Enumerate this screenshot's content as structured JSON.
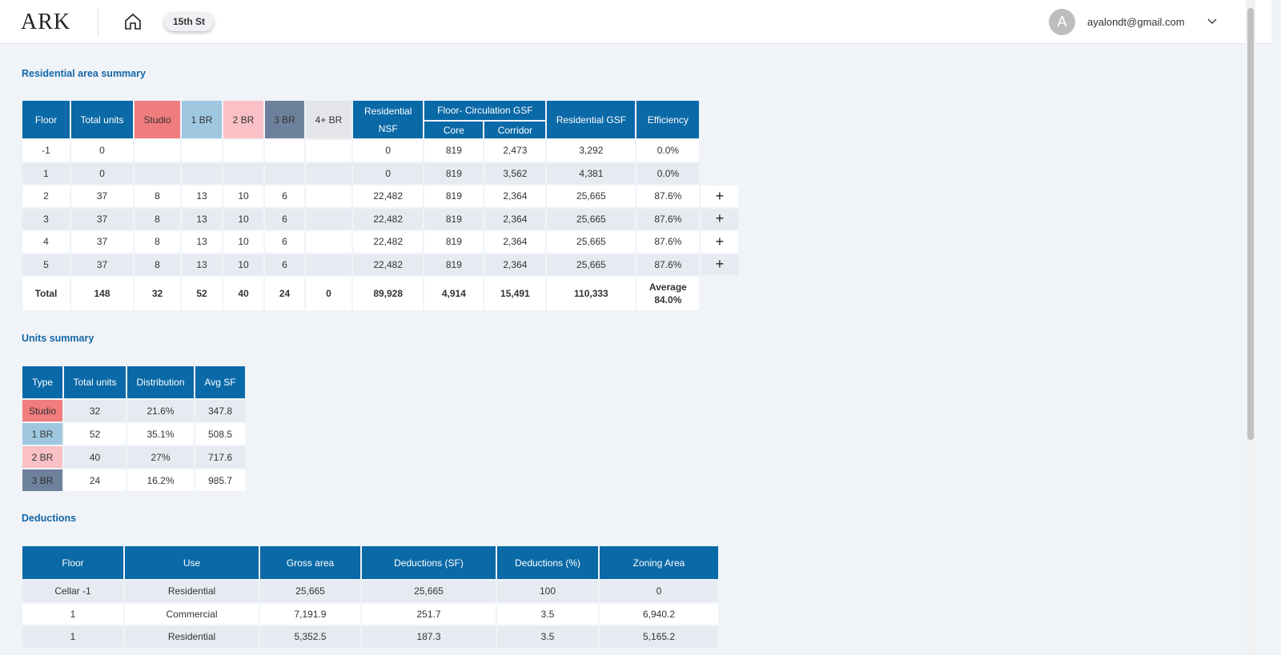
{
  "header": {
    "logo": "ARK",
    "project": "15th St",
    "avatar": "A",
    "email": "ayalondt@gmail.com"
  },
  "residential": {
    "title": "Residential area summary",
    "headers": {
      "floor": "Floor",
      "total_units": "Total units",
      "studio": "Studio",
      "br1": "1 BR",
      "br2": "2 BR",
      "br3": "3 BR",
      "br4": "4+ BR",
      "nsf": "Residential NSF",
      "circulation": "Floor- Circulation GSF",
      "core": "Core",
      "corridor": "Corridor",
      "gsf": "Residential GSF",
      "efficiency": "Efficiency"
    },
    "rows": [
      {
        "cells": [
          "-1",
          "0",
          null,
          null,
          null,
          null,
          null,
          "0",
          "819",
          "2,473",
          "3,292",
          "0.0%"
        ],
        "expandable": false
      },
      {
        "cells": [
          "1",
          "0",
          null,
          null,
          null,
          null,
          null,
          "0",
          "819",
          "3,562",
          "4,381",
          "0.0%"
        ],
        "expandable": false
      },
      {
        "cells": [
          "2",
          "37",
          "8",
          "13",
          "10",
          "6",
          null,
          "22,482",
          "819",
          "2,364",
          "25,665",
          "87.6%"
        ],
        "expandable": true
      },
      {
        "cells": [
          "3",
          "37",
          "8",
          "13",
          "10",
          "6",
          null,
          "22,482",
          "819",
          "2,364",
          "25,665",
          "87.6%"
        ],
        "expandable": true
      },
      {
        "cells": [
          "4",
          "37",
          "8",
          "13",
          "10",
          "6",
          null,
          "22,482",
          "819",
          "2,364",
          "25,665",
          "87.6%"
        ],
        "expandable": true
      },
      {
        "cells": [
          "5",
          "37",
          "8",
          "13",
          "10",
          "6",
          null,
          "22,482",
          "819",
          "2,364",
          "25,665",
          "87.6%"
        ],
        "expandable": true
      }
    ],
    "total": {
      "cells": [
        "Total",
        "148",
        "32",
        "52",
        "40",
        "24",
        "0",
        "89,928",
        "4,914",
        "15,491",
        "110,333"
      ],
      "efficiency": {
        "label": "Average",
        "value": "84.0%"
      }
    }
  },
  "units": {
    "title": "Units summary",
    "headers": [
      "Type",
      "Total units",
      "Distribution",
      "Avg SF"
    ],
    "rows": [
      [
        "Studio",
        "32",
        "21.6%",
        "347.8"
      ],
      [
        "1 BR",
        "52",
        "35.1%",
        "508.5"
      ],
      [
        "2 BR",
        "40",
        "27%",
        "717.6"
      ],
      [
        "3 BR",
        "24",
        "16.2%",
        "985.7"
      ]
    ],
    "colors": [
      "#f07c7d",
      "#9fc8e0",
      "#f9c1c5",
      "#6e819c"
    ]
  },
  "deductions": {
    "title": "Deductions",
    "headers": [
      "Floor",
      "Use",
      "Gross area",
      "Deductions (SF)",
      "Deductions (%)",
      "Zoning Area"
    ],
    "rows": [
      [
        "Cellar -1",
        "Residential",
        "25,665",
        "25,665",
        "100",
        "0"
      ],
      [
        "1",
        "Commercial",
        "7,191.9",
        "251.7",
        "3.5",
        "6,940.2"
      ],
      [
        "1",
        "Residential",
        "5,352.5",
        "187.3",
        "3.5",
        "5,165.2"
      ]
    ]
  }
}
